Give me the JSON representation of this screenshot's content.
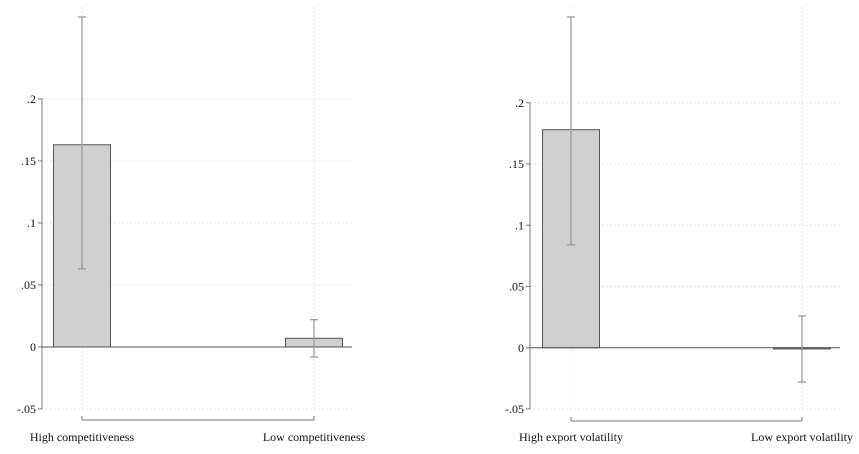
{
  "chart_data": [
    {
      "type": "bar",
      "title": "",
      "xlabel": "",
      "ylabel": "",
      "categories": [
        "High competitiveness",
        "Low competitiveness"
      ],
      "values": [
        0.163,
        0.007
      ],
      "error_low": [
        0.063,
        -0.008
      ],
      "error_high": [
        0.266,
        0.022
      ],
      "ylim": [
        -0.05,
        0.266
      ],
      "yticks": [
        -0.05,
        0,
        0.05,
        0.1,
        0.15,
        0.2
      ],
      "ytick_labels": [
        "-.05",
        "0",
        ".05",
        ".1",
        ".15",
        ".2"
      ],
      "grid": true,
      "colors": {
        "bar_fill": "#d0d0d0",
        "bar_stroke": "#555555",
        "error_bar": "#9a9a9a",
        "grid": "#d9d9d9",
        "axis": "#777777"
      }
    },
    {
      "type": "bar",
      "title": "",
      "xlabel": "",
      "ylabel": "",
      "categories": [
        "High export volatility",
        "Low export volatility"
      ],
      "values": [
        0.178,
        -0.001
      ],
      "error_low": [
        0.084,
        -0.028
      ],
      "error_high": [
        0.27,
        0.026
      ],
      "ylim": [
        -0.05,
        0.27
      ],
      "yticks": [
        -0.05,
        0,
        0.05,
        0.1,
        0.15,
        0.2
      ],
      "ytick_labels": [
        "-.05",
        "0",
        ".05",
        ".1",
        ".15",
        ".2"
      ],
      "grid": true,
      "colors": {
        "bar_fill": "#d0d0d0",
        "bar_stroke": "#555555",
        "error_bar": "#9a9a9a",
        "grid": "#d9d9d9",
        "axis": "#777777"
      }
    }
  ]
}
